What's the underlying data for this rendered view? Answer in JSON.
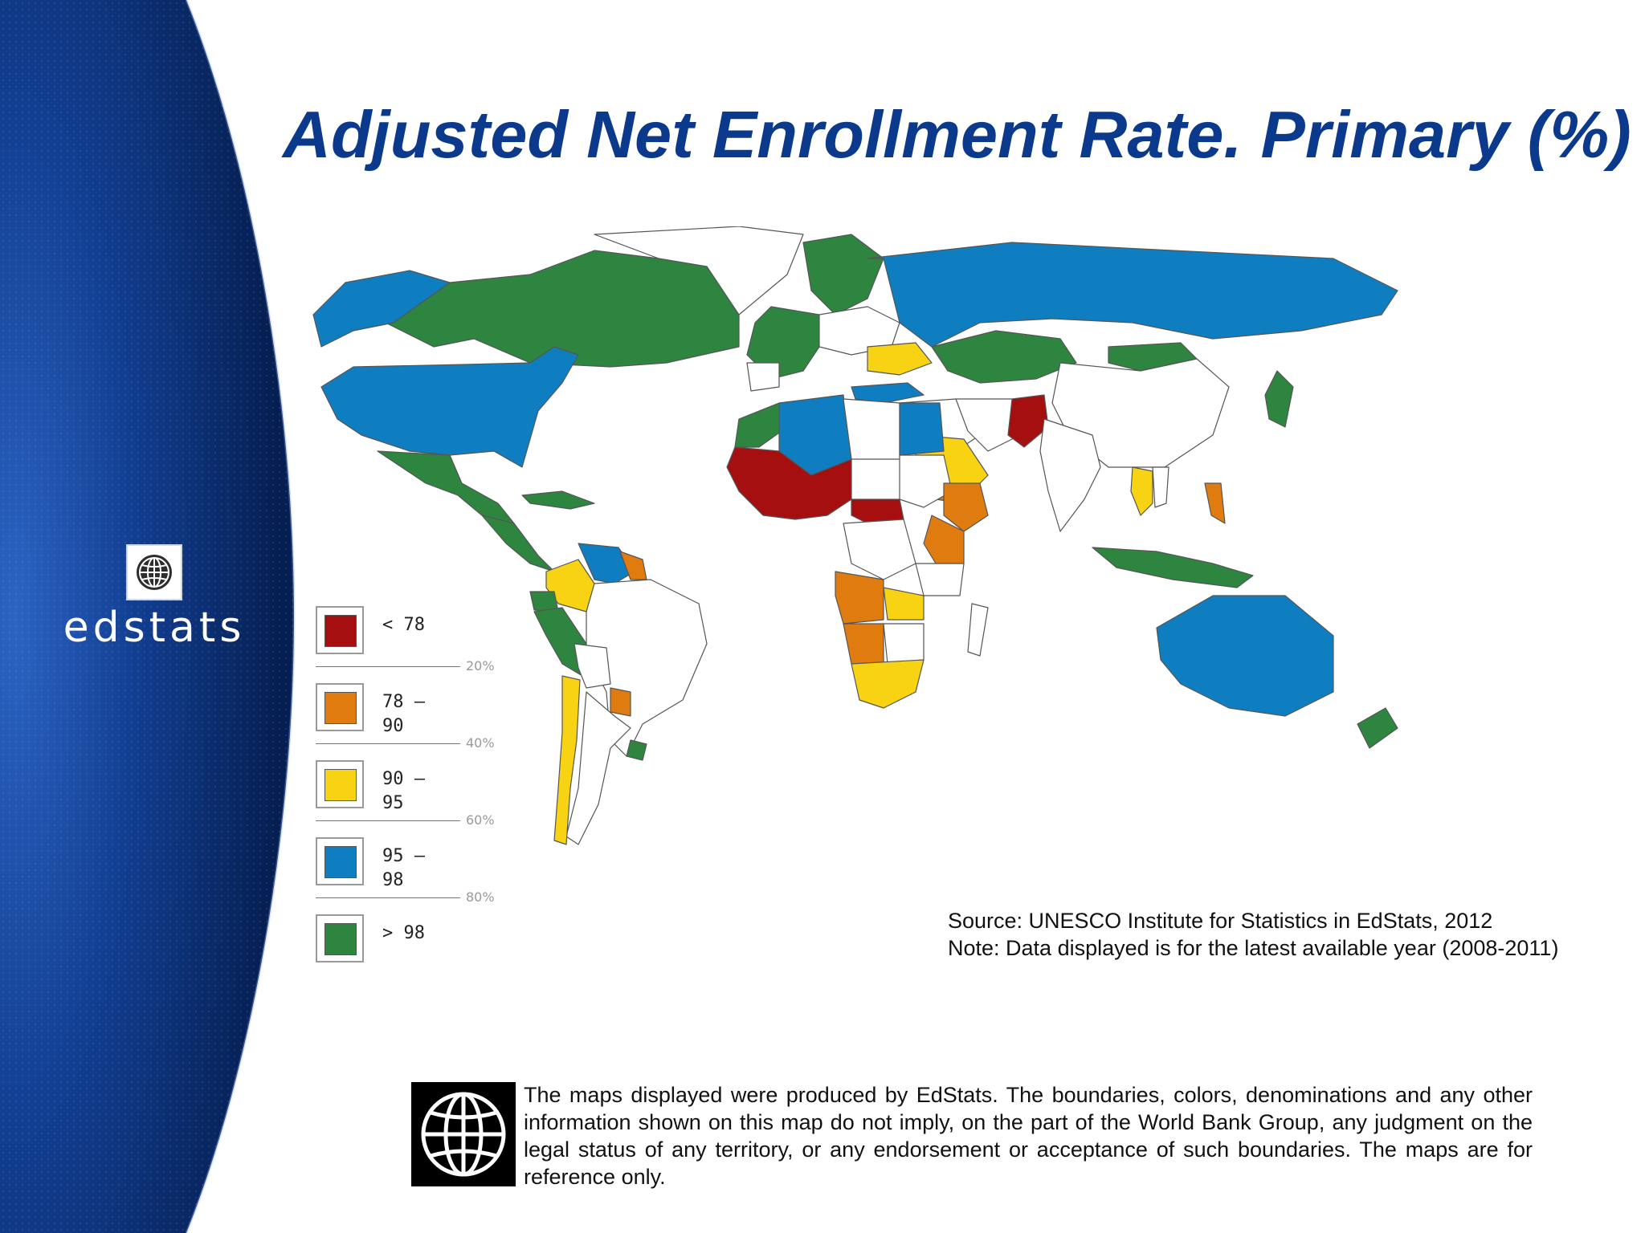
{
  "brand": {
    "name": "edstats",
    "logo_icon": "globe-icon"
  },
  "title": "Adjusted Net Enrollment Rate. Primary (%)",
  "legend": {
    "items": [
      {
        "label": "< 78",
        "color": "#a50f0f"
      },
      {
        "label": "78 –\n90",
        "color": "#e07b10"
      },
      {
        "label": "90 –\n95",
        "color": "#f7d313"
      },
      {
        "label": "95 –\n98",
        "color": "#0f7ec0"
      },
      {
        "label": "> 98",
        "color": "#2e8540"
      }
    ],
    "ticks": [
      "20%",
      "40%",
      "60%",
      "80%"
    ]
  },
  "source": {
    "line1": "Source:  UNESCO Institute for Statistics in EdStats, 2012",
    "line2": "Note: Data displayed is for the latest available year (2008-2011)"
  },
  "disclaimer": "The maps displayed were produced by EdStats. The boundaries, colors, denominations and any other information shown on this map do not imply, on the part of the World Bank Group, any judgment on the legal status of any territory, or any endorsement or acceptance of such boundaries. The maps are for reference only.",
  "footer_logo_icon": "world-bank-globe-icon",
  "colors": {
    "panel_blue": "#0a2f6e",
    "title_blue": "#0b3a8c",
    "no_data": "#ffffff",
    "border": "#555555"
  },
  "map_regions": [
    {
      "region": "Canada",
      "category": "> 98"
    },
    {
      "region": "Alaska",
      "category": "95 – 98"
    },
    {
      "region": "United States",
      "category": "95 – 98"
    },
    {
      "region": "Mexico",
      "category": "> 98"
    },
    {
      "region": "Central America",
      "category": "> 98"
    },
    {
      "region": "Caribbean",
      "category": "> 98"
    },
    {
      "region": "Colombia",
      "category": "90 – 95"
    },
    {
      "region": "Venezuela",
      "category": "95 – 98"
    },
    {
      "region": "Guyana",
      "category": "78 – 90"
    },
    {
      "region": "Ecuador",
      "category": "> 98"
    },
    {
      "region": "Peru",
      "category": "> 98"
    },
    {
      "region": "Chile",
      "category": "90 – 95"
    },
    {
      "region": "Paraguay",
      "category": "78 – 90"
    },
    {
      "region": "Uruguay",
      "category": "> 98"
    },
    {
      "region": "Western Europe",
      "category": "> 98"
    },
    {
      "region": "Scandinavia",
      "category": "> 98"
    },
    {
      "region": "Ukraine",
      "category": "90 – 95"
    },
    {
      "region": "Russia",
      "category": "95 – 98"
    },
    {
      "region": "Kazakhstan",
      "category": "> 98"
    },
    {
      "region": "Mongolia",
      "category": "> 98"
    },
    {
      "region": "Japan",
      "category": "> 98"
    },
    {
      "region": "Turkey",
      "category": "95 – 98"
    },
    {
      "region": "Saudi Arabia",
      "category": "90 – 95"
    },
    {
      "region": "Yemen",
      "category": "78 – 90"
    },
    {
      "region": "Pakistan",
      "category": "< 78"
    },
    {
      "region": "Egypt",
      "category": "95 – 98"
    },
    {
      "region": "Algeria",
      "category": "95 – 98"
    },
    {
      "region": "Morocco",
      "category": "> 98"
    },
    {
      "region": "West Africa",
      "category": "< 78"
    },
    {
      "region": "Central African Rep",
      "category": "< 78"
    },
    {
      "region": "Ethiopia",
      "category": "78 – 90"
    },
    {
      "region": "Kenya",
      "category": "78 – 90"
    },
    {
      "region": "Angola",
      "category": "78 – 90"
    },
    {
      "region": "Namibia",
      "category": "78 – 90"
    },
    {
      "region": "Zambia",
      "category": "90 – 95"
    },
    {
      "region": "South Africa",
      "category": "90 – 95"
    },
    {
      "region": "Thailand",
      "category": "90 – 95"
    },
    {
      "region": "Philippines",
      "category": "78 – 90"
    },
    {
      "region": "Indonesia",
      "category": "> 98"
    },
    {
      "region": "Australia",
      "category": "95 – 98"
    },
    {
      "region": "New Zealand",
      "category": "> 98"
    }
  ]
}
